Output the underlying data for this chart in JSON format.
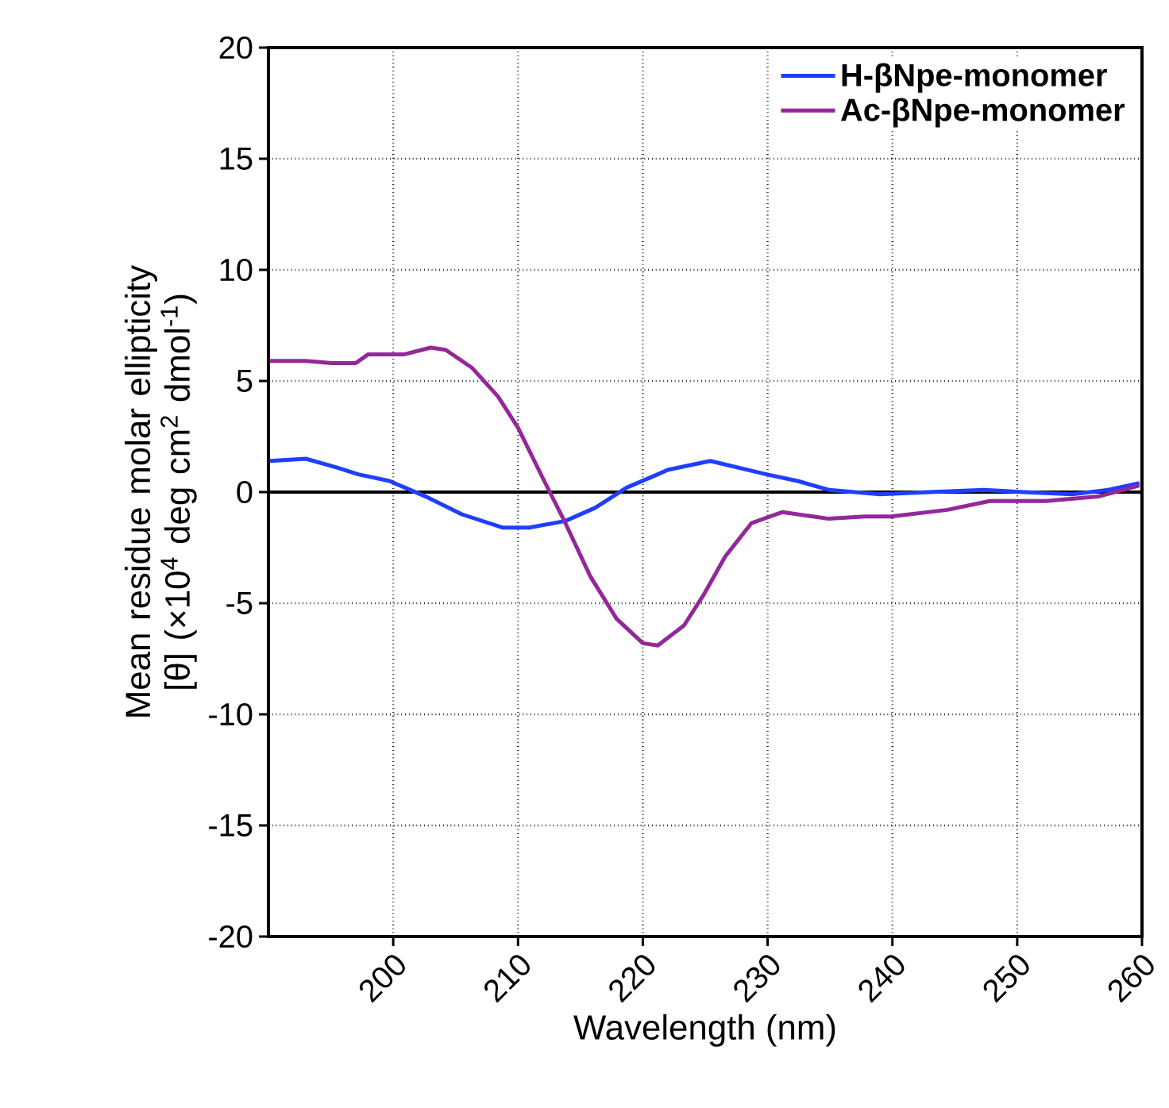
{
  "chart_data": {
    "type": "line",
    "xlabel": "Wavelength (nm)",
    "ylabel": "Mean residue molar ellipticity [θ] (×10$^{4}$ deg cm$^{2}$ dmol$^{-1}$)",
    "xlim": [
      190,
      260
    ],
    "ylim": [
      -20,
      20
    ],
    "xticks": [
      200,
      210,
      220,
      230,
      240,
      250,
      260
    ],
    "yticks": [
      -20,
      -15,
      -10,
      -5,
      0,
      5,
      10,
      15,
      20
    ],
    "grid": true,
    "legend": "top right",
    "marker": "none",
    "line_style": "solid",
    "ref_lines": [
      {
        "axis": "y",
        "value": 0,
        "color": "#000000"
      }
    ],
    "series": [
      {
        "name": "H-βNpe-monomer",
        "color": "#1f3fff",
        "x": [
          190.1,
          193.0,
          195.5,
          197.2,
          199.7,
          202.6,
          205.5,
          208.8,
          210.9,
          213.8,
          216.2,
          218.7,
          221.2,
          222.0,
          225.4,
          229.9,
          232.4,
          234.9,
          239.0,
          243.0,
          247.3,
          250.5,
          254.4,
          257.3,
          259.8
        ],
        "values": [
          1.4,
          1.5,
          1.1,
          0.8,
          0.5,
          -0.2,
          -1.0,
          -1.6,
          -1.6,
          -1.3,
          -0.7,
          0.2,
          0.8,
          1.0,
          1.4,
          0.8,
          0.5,
          0.1,
          -0.1,
          0.0,
          0.1,
          0.0,
          -0.1,
          0.1,
          0.4
        ]
      },
      {
        "name": "Ac-βNpe-monomer",
        "color": "#93289a",
        "x": [
          190.1,
          193.0,
          195.1,
          197.0,
          198.0,
          200.9,
          203.0,
          204.2,
          206.3,
          208.4,
          210.0,
          212.1,
          213.8,
          215.8,
          217.9,
          220.0,
          221.2,
          223.3,
          224.9,
          226.6,
          228.7,
          231.2,
          234.9,
          237.8,
          239.9,
          244.4,
          247.8,
          252.3,
          256.5,
          259.8
        ],
        "values": [
          5.9,
          5.9,
          5.8,
          5.8,
          6.2,
          6.2,
          6.5,
          6.4,
          5.6,
          4.3,
          2.9,
          0.5,
          -1.4,
          -3.8,
          -5.7,
          -6.8,
          -6.9,
          -6.0,
          -4.6,
          -2.9,
          -1.4,
          -0.9,
          -1.2,
          -1.1,
          -1.1,
          -0.8,
          -0.4,
          -0.4,
          -0.2,
          0.3
        ]
      }
    ]
  }
}
